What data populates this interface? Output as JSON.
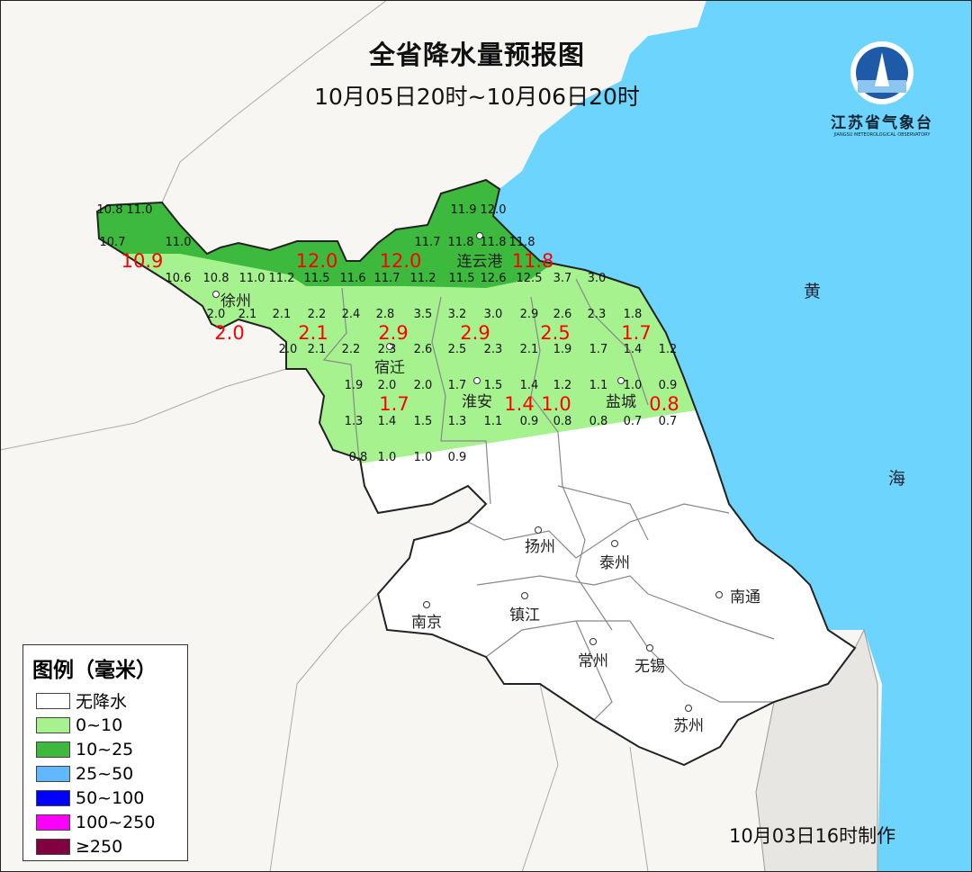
{
  "header": {
    "title": "全省降水量预报图",
    "subtitle": "10月05日20时~10月06日20时"
  },
  "logo": {
    "name": "江苏省气象台",
    "english": "JIANGSU METEOROLOGICAL OBSERVATORY"
  },
  "footer": {
    "made": "10月03日16时制作"
  },
  "sea": {
    "label1": "黄",
    "label2": "海"
  },
  "cities": [
    "连云港",
    "徐州",
    "宿迁",
    "淮安",
    "盐城",
    "扬州",
    "泰州",
    "南通",
    "南京",
    "镇江",
    "常州",
    "无锡",
    "苏州"
  ],
  "legend": {
    "title": "图例（毫米）",
    "items": [
      {
        "label": "无降水",
        "color": "#ffffff"
      },
      {
        "label": "0~10",
        "color": "#a6f28f"
      },
      {
        "label": "10~25",
        "color": "#3dba3d"
      },
      {
        "label": "25~50",
        "color": "#61b8ff"
      },
      {
        "label": "50~100",
        "color": "#0000ff"
      },
      {
        "label": "100~250",
        "color": "#fa00fa"
      },
      {
        "label": "≥250",
        "color": "#800040"
      }
    ]
  },
  "colors": {
    "sea": "#6dd5fd",
    "land": "#f7f6f3",
    "light_green": "#a6f28f",
    "dark_green": "#3dba3d",
    "label_red": "#ff0000"
  },
  "city_values": [
    "10.9",
    "12.0",
    "12.0",
    "11.8",
    "2.0",
    "2.1",
    "2.9",
    "2.9",
    "2.5",
    "1.7",
    "1.7",
    "1.4",
    "1.0",
    "0.8"
  ],
  "grid_values": [
    "10.8",
    "11.0",
    "11.9",
    "12.0",
    "10.7",
    "11.0",
    "11.7",
    "11.8",
    "11.8",
    "11.8",
    "10.6",
    "10.8",
    "11.0",
    "11.2",
    "11.5",
    "11.6",
    "11.7",
    "11.2",
    "11.5",
    "12.6",
    "12.5",
    "3.7",
    "3.0",
    "2.0",
    "2.1",
    "2.1",
    "2.2",
    "2.4",
    "2.8",
    "3.5",
    "3.2",
    "3.0",
    "2.9",
    "2.6",
    "2.3",
    "1.8",
    "2.0",
    "2.1",
    "2.2",
    "2.3",
    "2.6",
    "2.5",
    "2.3",
    "2.1",
    "1.9",
    "1.7",
    "1.4",
    "1.2",
    "1.9",
    "2.0",
    "2.0",
    "1.7",
    "1.5",
    "1.4",
    "1.2",
    "1.1",
    "1.0",
    "0.9",
    "1.3",
    "1.4",
    "1.5",
    "1.3",
    "1.1",
    "0.9",
    "0.8",
    "0.8",
    "0.7",
    "0.7",
    "0.8",
    "1.0",
    "1.0",
    "0.9"
  ]
}
